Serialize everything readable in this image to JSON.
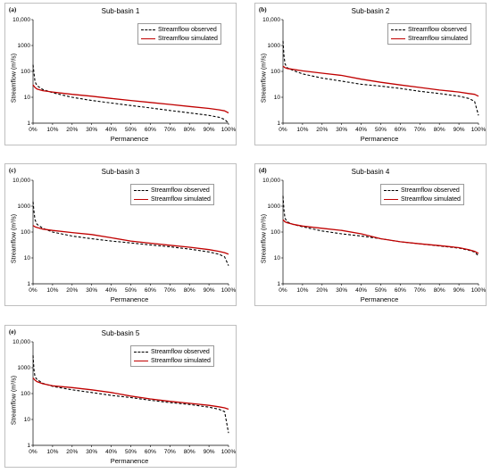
{
  "chart_data": [
    {
      "type": "line",
      "tag": "(a)",
      "title": "Sub-basin 1",
      "xlabel": "Permanence",
      "ylabel": "Streamflow (m³/s)",
      "y_scale": "log",
      "ylim": [
        1,
        10000
      ],
      "y_ticks": [
        "1",
        "10",
        "100",
        "1000",
        "10,000"
      ],
      "x_ticks": [
        "0%",
        "10%",
        "20%",
        "30%",
        "40%",
        "50%",
        "60%",
        "70%",
        "80%",
        "90%",
        "100%"
      ],
      "legend_position": "top-right",
      "series": [
        {
          "name": "Streamflow observed",
          "style": "dashed",
          "color": "#000000",
          "x": [
            0,
            1,
            2,
            5,
            10,
            20,
            30,
            40,
            50,
            60,
            70,
            80,
            90,
            95,
            98,
            100
          ],
          "values": [
            180,
            40,
            28,
            20,
            15,
            10,
            7.5,
            6,
            4.8,
            3.9,
            3.1,
            2.5,
            2.0,
            1.7,
            1.4,
            1.0
          ]
        },
        {
          "name": "Streamflow simulated",
          "style": "solid",
          "color": "#c00000",
          "x": [
            0,
            1,
            2,
            5,
            10,
            20,
            30,
            40,
            50,
            60,
            70,
            80,
            90,
            95,
            98,
            100
          ],
          "values": [
            30,
            24,
            21,
            18,
            16,
            13,
            11,
            9,
            7.5,
            6.3,
            5.3,
            4.4,
            3.7,
            3.3,
            3.0,
            2.5
          ]
        }
      ]
    },
    {
      "type": "line",
      "tag": "(b)",
      "title": "Sub-basin 2",
      "xlabel": "Permanence",
      "ylabel": "Streamflow (m³/s)",
      "y_scale": "log",
      "ylim": [
        1,
        10000
      ],
      "y_ticks": [
        "1",
        "10",
        "100",
        "1000",
        "10,000"
      ],
      "x_ticks": [
        "0%",
        "10%",
        "20%",
        "30%",
        "40%",
        "50%",
        "60%",
        "70%",
        "80%",
        "90%",
        "100%"
      ],
      "legend_position": "top-right",
      "series": [
        {
          "name": "Streamflow observed",
          "style": "dashed",
          "color": "#000000",
          "x": [
            0,
            0.5,
            1,
            2,
            5,
            10,
            20,
            30,
            40,
            50,
            60,
            70,
            80,
            90,
            95,
            98,
            100
          ],
          "values": [
            1500,
            400,
            200,
            140,
            110,
            80,
            55,
            42,
            32,
            27,
            22,
            17,
            14,
            11,
            9,
            7,
            2
          ]
        },
        {
          "name": "Streamflow simulated",
          "style": "solid",
          "color": "#c00000",
          "x": [
            0,
            1,
            2,
            5,
            10,
            20,
            30,
            40,
            50,
            60,
            70,
            80,
            90,
            95,
            98,
            100
          ],
          "values": [
            160,
            140,
            130,
            120,
            105,
            85,
            70,
            50,
            38,
            30,
            24,
            19,
            16,
            14,
            13,
            11
          ]
        }
      ]
    },
    {
      "type": "line",
      "tag": "(c)",
      "title": "Sub-basin 3",
      "xlabel": "Permanence",
      "ylabel": "Streamflow (m³/s)",
      "y_scale": "log",
      "ylim": [
        1,
        10000
      ],
      "y_ticks": [
        "1",
        "10",
        "100",
        "1000",
        "10,000"
      ],
      "x_ticks": [
        "0%",
        "10%",
        "20%",
        "30%",
        "40%",
        "50%",
        "60%",
        "70%",
        "80%",
        "90%",
        "100%"
      ],
      "legend_position": "top-right",
      "series": [
        {
          "name": "Streamflow observed",
          "style": "dashed",
          "color": "#000000",
          "x": [
            0,
            0.5,
            1,
            2,
            5,
            10,
            20,
            30,
            40,
            50,
            60,
            70,
            80,
            90,
            95,
            98,
            100
          ],
          "values": [
            1500,
            600,
            300,
            200,
            140,
            100,
            70,
            55,
            45,
            38,
            32,
            27,
            22,
            17,
            14,
            11,
            5
          ]
        },
        {
          "name": "Streamflow simulated",
          "style": "solid",
          "color": "#c00000",
          "x": [
            0,
            1,
            2,
            5,
            10,
            20,
            30,
            40,
            50,
            60,
            70,
            80,
            90,
            95,
            98,
            100
          ],
          "values": [
            180,
            160,
            150,
            130,
            115,
            95,
            80,
            60,
            45,
            37,
            31,
            26,
            21,
            18,
            16,
            14
          ]
        }
      ]
    },
    {
      "type": "line",
      "tag": "(d)",
      "title": "Sub-basin 4",
      "xlabel": "Permanence",
      "ylabel": "Streamflow (m³/s)",
      "y_scale": "log",
      "ylim": [
        1,
        10000
      ],
      "y_ticks": [
        "1",
        "10",
        "100",
        "1000",
        "10,000"
      ],
      "x_ticks": [
        "0%",
        "10%",
        "20%",
        "30%",
        "40%",
        "50%",
        "60%",
        "70%",
        "80%",
        "90%",
        "100%"
      ],
      "legend_position": "top-right",
      "series": [
        {
          "name": "Streamflow observed",
          "style": "dashed",
          "color": "#000000",
          "x": [
            0,
            0.5,
            1,
            2,
            5,
            10,
            20,
            30,
            40,
            50,
            60,
            70,
            80,
            90,
            95,
            98,
            100
          ],
          "values": [
            2500,
            700,
            350,
            250,
            200,
            160,
            110,
            85,
            70,
            55,
            42,
            35,
            29,
            24,
            20,
            17,
            12
          ]
        },
        {
          "name": "Streamflow simulated",
          "style": "solid",
          "color": "#c00000",
          "x": [
            0,
            1,
            2,
            5,
            10,
            20,
            30,
            40,
            50,
            60,
            70,
            80,
            90,
            95,
            98,
            100
          ],
          "values": [
            300,
            250,
            230,
            200,
            170,
            140,
            115,
            85,
            55,
            42,
            35,
            30,
            25,
            21,
            18,
            15
          ]
        }
      ]
    },
    {
      "type": "line",
      "tag": "(e)",
      "title": "Sub-basin 5",
      "xlabel": "Permanence",
      "ylabel": "Streamflow (m³/s)",
      "y_scale": "log",
      "ylim": [
        1,
        10000
      ],
      "y_ticks": [
        "1",
        "10",
        "100",
        "1000",
        "10,000"
      ],
      "x_ticks": [
        "0%",
        "10%",
        "20%",
        "30%",
        "40%",
        "50%",
        "60%",
        "70%",
        "80%",
        "90%",
        "100%"
      ],
      "legend_position": "top-right",
      "series": [
        {
          "name": "Streamflow observed",
          "style": "dashed",
          "color": "#000000",
          "x": [
            0,
            0.5,
            1,
            2,
            5,
            10,
            20,
            30,
            40,
            50,
            60,
            70,
            80,
            90,
            95,
            98,
            100
          ],
          "values": [
            3000,
            800,
            450,
            350,
            250,
            190,
            140,
            110,
            85,
            70,
            55,
            45,
            38,
            30,
            25,
            20,
            3
          ]
        },
        {
          "name": "Streamflow simulated",
          "style": "solid",
          "color": "#c00000",
          "x": [
            0,
            1,
            2,
            5,
            10,
            20,
            30,
            40,
            50,
            60,
            70,
            80,
            90,
            95,
            98,
            100
          ],
          "values": [
            400,
            330,
            290,
            240,
            200,
            170,
            140,
            110,
            80,
            62,
            50,
            42,
            35,
            31,
            28,
            25
          ]
        }
      ]
    }
  ]
}
